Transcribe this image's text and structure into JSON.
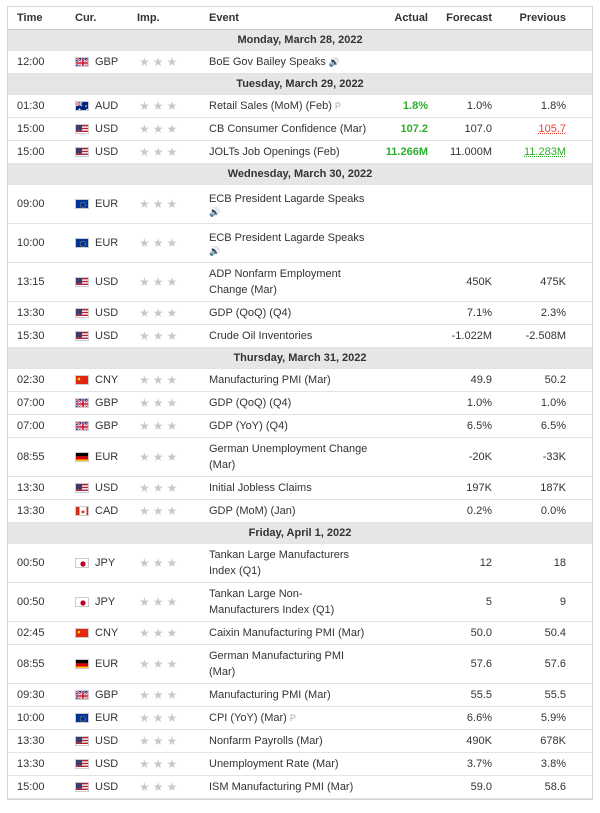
{
  "header": {
    "time": "Time",
    "cur": "Cur.",
    "imp": "Imp.",
    "event": "Event",
    "actual": "Actual",
    "forecast": "Forecast",
    "previous": "Previous"
  },
  "stars": "★★★",
  "speaker_glyph": "🔊",
  "prelim_glyph": "P",
  "days": [
    {
      "label": "Monday, March 28, 2022",
      "events": [
        {
          "time": "12:00",
          "cur": "GBP",
          "flag": "gb",
          "event": "BoE Gov Bailey Speaks",
          "marker": "speaker",
          "actual": "",
          "forecast": "",
          "previous": ""
        }
      ]
    },
    {
      "label": "Tuesday, March 29, 2022",
      "events": [
        {
          "time": "01:30",
          "cur": "AUD",
          "flag": "au",
          "event": "Retail Sales (MoM) (Feb)",
          "marker": "prelim",
          "actual": "1.8%",
          "actual_color": "green",
          "forecast": "1.0%",
          "previous": "1.8%"
        },
        {
          "time": "15:00",
          "cur": "USD",
          "flag": "us",
          "event": "CB Consumer Confidence (Mar)",
          "actual": "107.2",
          "actual_color": "green",
          "forecast": "107.0",
          "previous": "105.7",
          "previous_color": "red"
        },
        {
          "time": "15:00",
          "cur": "USD",
          "flag": "us",
          "event": "JOLTs Job Openings (Feb)",
          "actual": "11.266M",
          "actual_color": "green",
          "forecast": "11.000M",
          "previous": "11.283M",
          "previous_color": "green"
        }
      ]
    },
    {
      "label": "Wednesday, March 30, 2022",
      "events": [
        {
          "time": "09:00",
          "cur": "EUR",
          "flag": "eu",
          "event": "ECB President Lagarde Speaks",
          "marker": "speaker-line",
          "tall": true,
          "actual": "",
          "forecast": "",
          "previous": ""
        },
        {
          "time": "10:00",
          "cur": "EUR",
          "flag": "eu",
          "event": "ECB President Lagarde Speaks",
          "marker": "speaker-line",
          "tall": true,
          "actual": "",
          "forecast": "",
          "previous": ""
        },
        {
          "time": "13:15",
          "cur": "USD",
          "flag": "us",
          "event": "ADP Nonfarm Employment Change (Mar)",
          "tall": true,
          "actual": "",
          "forecast": "450K",
          "previous": "475K"
        },
        {
          "time": "13:30",
          "cur": "USD",
          "flag": "us",
          "event": "GDP (QoQ) (Q4)",
          "actual": "",
          "forecast": "7.1%",
          "previous": "2.3%"
        },
        {
          "time": "15:30",
          "cur": "USD",
          "flag": "us",
          "event": "Crude Oil Inventories",
          "actual": "",
          "forecast": "-1.022M",
          "previous": "-2.508M"
        }
      ]
    },
    {
      "label": "Thursday, March 31, 2022",
      "events": [
        {
          "time": "02:30",
          "cur": "CNY",
          "flag": "cn",
          "event": "Manufacturing PMI (Mar)",
          "actual": "",
          "forecast": "49.9",
          "previous": "50.2"
        },
        {
          "time": "07:00",
          "cur": "GBP",
          "flag": "gb",
          "event": "GDP (QoQ) (Q4)",
          "actual": "",
          "forecast": "1.0%",
          "previous": "1.0%"
        },
        {
          "time": "07:00",
          "cur": "GBP",
          "flag": "gb",
          "event": "GDP (YoY) (Q4)",
          "actual": "",
          "forecast": "6.5%",
          "previous": "6.5%"
        },
        {
          "time": "08:55",
          "cur": "EUR",
          "flag": "de",
          "event": "German Unemployment Change (Mar)",
          "tall": true,
          "actual": "",
          "forecast": "-20K",
          "previous": "-33K"
        },
        {
          "time": "13:30",
          "cur": "USD",
          "flag": "us",
          "event": "Initial Jobless Claims",
          "actual": "",
          "forecast": "197K",
          "previous": "187K"
        },
        {
          "time": "13:30",
          "cur": "CAD",
          "flag": "ca",
          "event": "GDP (MoM) (Jan)",
          "actual": "",
          "forecast": "0.2%",
          "previous": "0.0%"
        }
      ]
    },
    {
      "label": "Friday, April 1, 2022",
      "events": [
        {
          "time": "00:50",
          "cur": "JPY",
          "flag": "jp",
          "event": "Tankan Large Manufacturers Index (Q1)",
          "tall": true,
          "actual": "",
          "forecast": "12",
          "previous": "18"
        },
        {
          "time": "00:50",
          "cur": "JPY",
          "flag": "jp",
          "event": "Tankan Large Non-Manufacturers Index (Q1)",
          "tall": true,
          "actual": "",
          "forecast": "5",
          "previous": "9"
        },
        {
          "time": "02:45",
          "cur": "CNY",
          "flag": "cn",
          "event": "Caixin Manufacturing PMI (Mar)",
          "actual": "",
          "forecast": "50.0",
          "previous": "50.4"
        },
        {
          "time": "08:55",
          "cur": "EUR",
          "flag": "de",
          "event": "German Manufacturing PMI (Mar)",
          "tall": true,
          "actual": "",
          "forecast": "57.6",
          "previous": "57.6"
        },
        {
          "time": "09:30",
          "cur": "GBP",
          "flag": "gb",
          "event": "Manufacturing PMI (Mar)",
          "actual": "",
          "forecast": "55.5",
          "previous": "55.5"
        },
        {
          "time": "10:00",
          "cur": "EUR",
          "flag": "eu",
          "event": "CPI (YoY) (Mar)",
          "marker": "prelim",
          "actual": "",
          "forecast": "6.6%",
          "previous": "5.9%"
        },
        {
          "time": "13:30",
          "cur": "USD",
          "flag": "us",
          "event": "Nonfarm Payrolls (Mar)",
          "actual": "",
          "forecast": "490K",
          "previous": "678K"
        },
        {
          "time": "13:30",
          "cur": "USD",
          "flag": "us",
          "event": "Unemployment Rate (Mar)",
          "actual": "",
          "forecast": "3.7%",
          "previous": "3.8%"
        },
        {
          "time": "15:00",
          "cur": "USD",
          "flag": "us",
          "event": "ISM Manufacturing PMI (Mar)",
          "actual": "",
          "forecast": "59.0",
          "previous": "58.6"
        }
      ]
    }
  ],
  "colors": {
    "positive": "#2daf2d",
    "negative": "#e8443c",
    "day_bg": "#e6e6e6",
    "star_inactive": "#c8c8c8"
  }
}
